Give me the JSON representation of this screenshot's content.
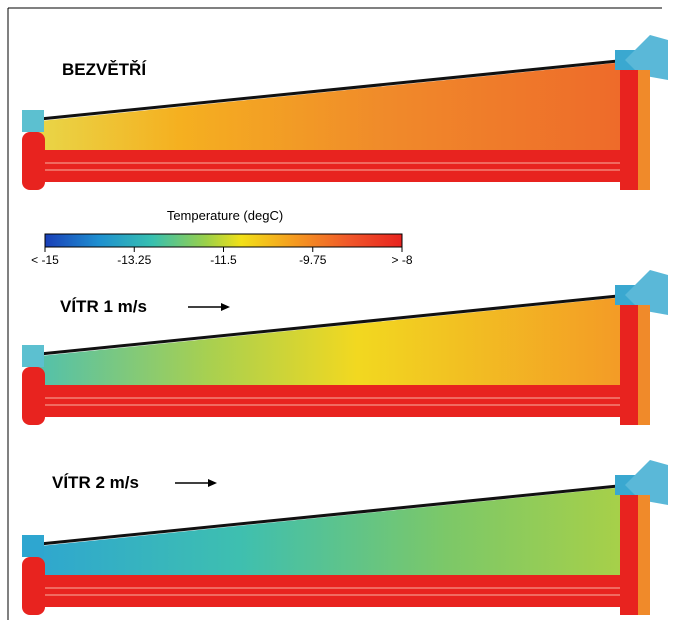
{
  "colorbar": {
    "title": "Temperature (degC)",
    "ticks": [
      "< -15",
      "-13.25",
      "-11.5",
      "-9.75",
      "> -8"
    ]
  },
  "panels": [
    {
      "label": "BEZVĚTŘÍ"
    },
    {
      "label": "VÍTR 1 m/s"
    },
    {
      "label": "VÍTR 2 m/s"
    }
  ]
}
